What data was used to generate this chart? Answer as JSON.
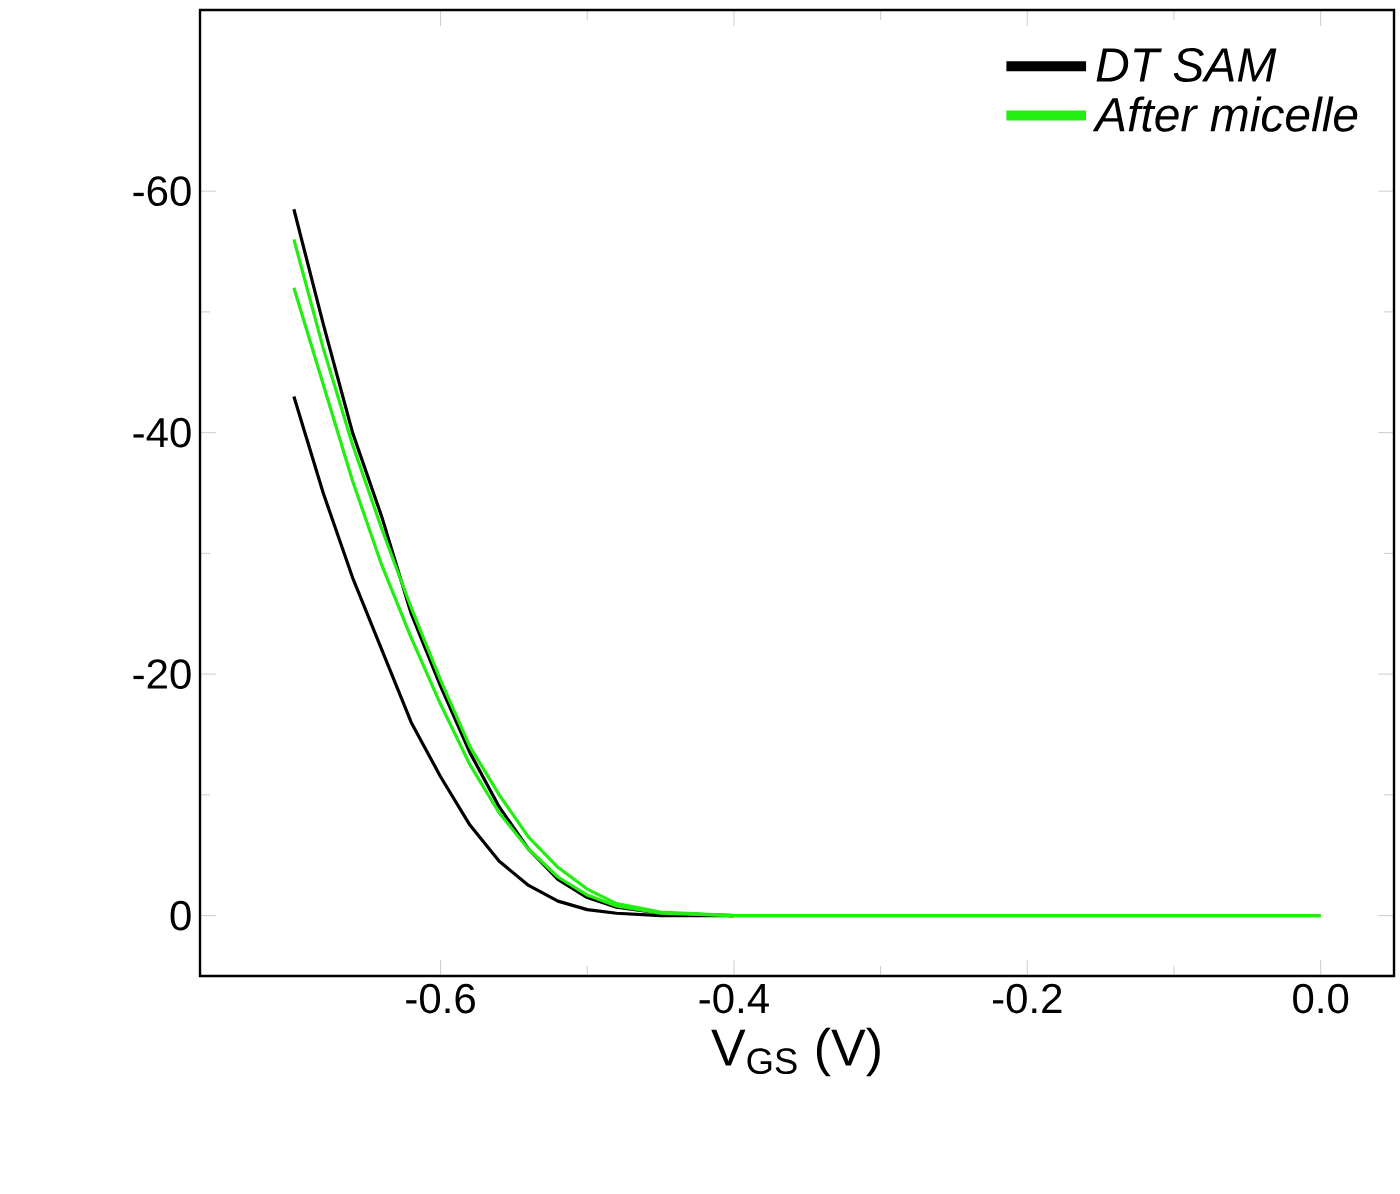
{
  "chart_data": {
    "type": "line",
    "xlabel": "V$_{GS}$ (V)",
    "x": [
      -0.7,
      -0.68,
      -0.66,
      -0.64,
      -0.62,
      -0.6,
      -0.58,
      -0.56,
      -0.54,
      -0.52,
      -0.5,
      -0.48,
      -0.45,
      -0.4,
      -0.3,
      -0.2,
      -0.1,
      0
    ],
    "series": [
      {
        "name": "DT SAM",
        "color": "#000000",
        "values": [
          -58.5,
          -49,
          -40,
          -33,
          -25,
          -19,
          -13.5,
          -9,
          -5.5,
          -3,
          -1.5,
          -0.7,
          -0.2,
          0,
          null,
          null,
          null,
          null
        ]
      },
      {
        "color": "#000000",
        "values": [
          -43,
          -35,
          -28,
          -22,
          -16,
          -11.5,
          -7.5,
          -4.5,
          -2.5,
          -1.2,
          -0.5,
          -0.2,
          0,
          0,
          null,
          null,
          null,
          null
        ]
      },
      {
        "name": "After micelle",
        "color": "#22ee11",
        "values": [
          -56,
          -47,
          -39,
          -32,
          -25.5,
          -19.5,
          -14,
          -10,
          -6.5,
          -4,
          -2.2,
          -1,
          -0.3,
          0,
          0,
          0,
          0,
          0
        ]
      },
      {
        "color": "#22ee11",
        "values": [
          -52,
          -44,
          -36,
          -29,
          -23,
          -17.5,
          -12.5,
          -8.5,
          -5.5,
          -3.2,
          -1.7,
          -0.8,
          -0.2,
          0,
          0,
          0,
          0,
          0
        ]
      }
    ],
    "xlim": [
      -0.764,
      0.05
    ],
    "ylim": [
      5,
      -75
    ],
    "xticks": [
      {
        "value": -0.6,
        "label": "-0.6"
      },
      {
        "value": -0.4,
        "label": "-0.4"
      },
      {
        "value": -0.2,
        "label": "-0.2"
      },
      {
        "value": 0,
        "label": "0.0"
      }
    ],
    "yticks": [
      -60,
      -40,
      -20,
      0
    ],
    "grid": false,
    "legend": "top right",
    "marker": "none",
    "line_style": "solid"
  }
}
